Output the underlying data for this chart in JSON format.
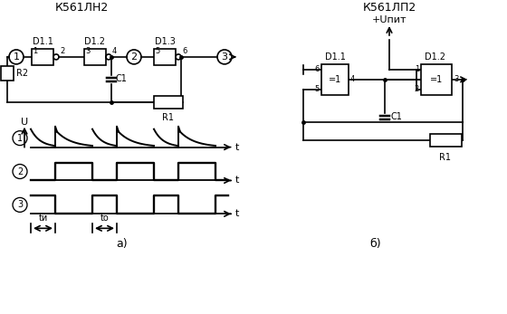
{
  "title_left": "К561ЛН2",
  "title_right": "К561ЛП2",
  "title_right2": "+Uпит",
  "label_a": "а)",
  "label_b": "б)",
  "bg_color": "#ffffff",
  "line_color": "#000000",
  "text_color": "#000000"
}
